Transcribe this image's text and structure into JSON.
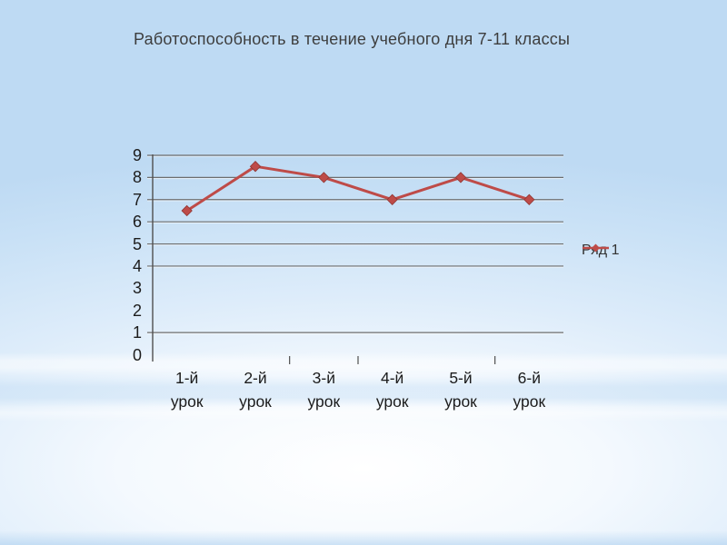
{
  "slide": {
    "title": "Работоспособность в течение учебного дня 7-11 классы"
  },
  "chart_data": {
    "type": "line",
    "title": "Работоспособность в течение учебного дня 7-11 классы",
    "categories": [
      "1-й урок",
      "2-й урок",
      "3-й урок",
      "4-й урок",
      "5-й урок",
      "6-й урок"
    ],
    "series": [
      {
        "name": "Ряд 1",
        "values": [
          6.5,
          8.5,
          8,
          7,
          8,
          7
        ],
        "color": "#be4b48",
        "marker": "diamond"
      }
    ],
    "xlabel": "",
    "ylabel": "",
    "ylim": [
      0,
      9
    ],
    "yticks": [
      0,
      1,
      2,
      3,
      4,
      5,
      6,
      7,
      8,
      9
    ],
    "visible_gridlines": [
      1,
      4,
      5,
      6,
      7,
      8,
      9
    ],
    "visible_x_boundary_ticks": [
      2,
      3,
      5
    ],
    "grid": true,
    "legend_position": "right"
  },
  "colors": {
    "series": "#be4b48",
    "marker_edge": "#8f3633",
    "gridline": "#6e6e6e",
    "axis": "#4f4f4f",
    "label_text": "#1c1c1c",
    "title_text": "#3d3d3d",
    "background_blue": "#bedaf3"
  }
}
